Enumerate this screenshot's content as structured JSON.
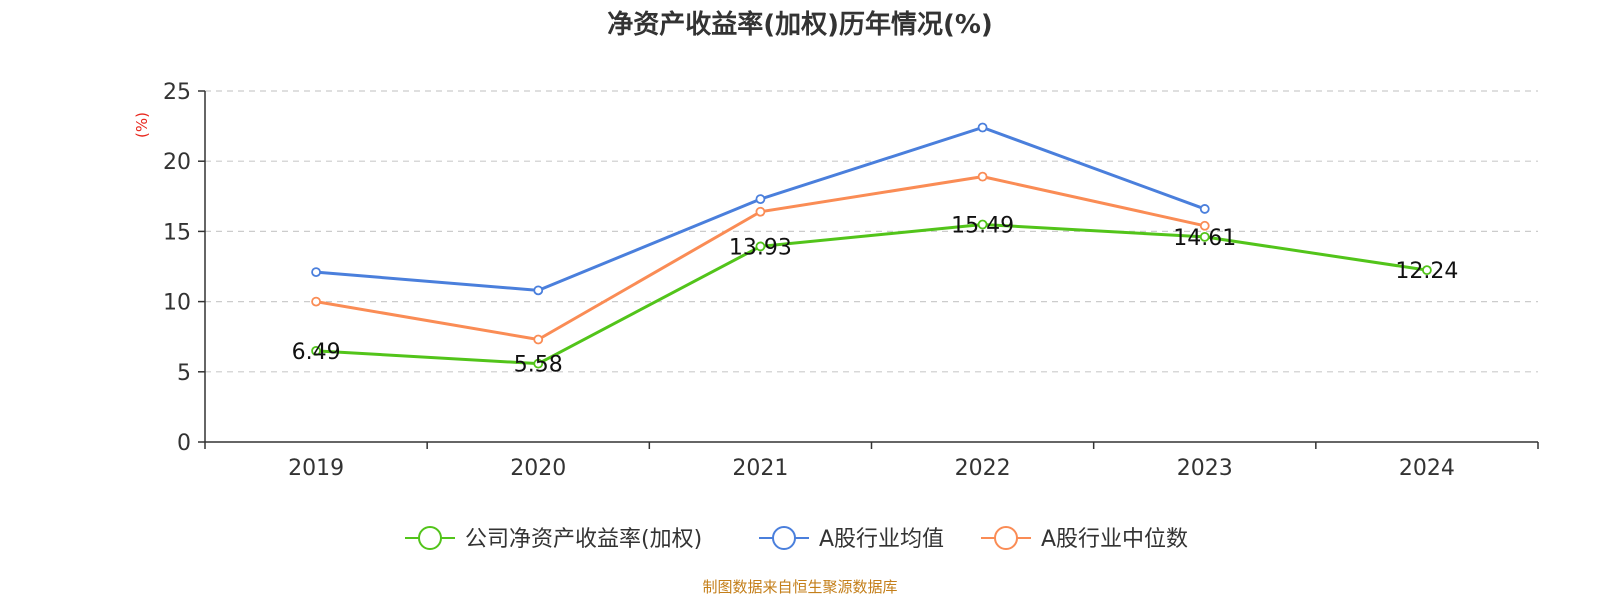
{
  "chart_data": {
    "type": "line",
    "title": "净资产收益率(加权)历年情况(%)",
    "ylabel": "(%)",
    "xlabel": "",
    "categories": [
      "2019",
      "2020",
      "2021",
      "2022",
      "2023",
      "2024"
    ],
    "ylim": [
      0,
      25
    ],
    "yticks": [
      0,
      5,
      10,
      15,
      20,
      25
    ],
    "grid": true,
    "legend_position": "bottom",
    "series": [
      {
        "name": "公司净资产收益率(加权)",
        "color": "#52c41a",
        "values": [
          6.49,
          5.58,
          13.93,
          15.49,
          14.61,
          12.24
        ],
        "labels": [
          "6.49",
          "5.58",
          "13.93",
          "15.49",
          "14.61",
          "12.24"
        ]
      },
      {
        "name": "A股行业均值",
        "color": "#4a7fdc",
        "values": [
          12.1,
          10.8,
          17.3,
          22.4,
          16.6,
          null
        ]
      },
      {
        "name": "A股行业中位数",
        "color": "#fa8c55",
        "values": [
          10.0,
          7.3,
          16.4,
          18.9,
          15.4,
          null
        ]
      }
    ],
    "source": "制图数据来自恒生聚源数据库"
  }
}
